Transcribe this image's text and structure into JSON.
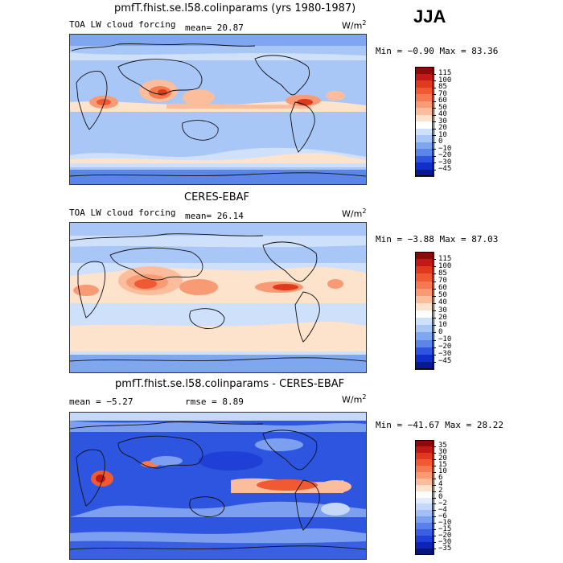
{
  "season": "JJA",
  "panels": [
    {
      "title": "pmfT.fhist.se.l58.colinparams (yrs 1980-1987)",
      "left_label": "TOA LW cloud forcing",
      "stat1": "mean=  20.87",
      "stat2": "",
      "units_base": "W/m",
      "units_exp": "2",
      "minmax": "Min =  −0.90 Max =  83.36",
      "colorbar": {
        "labels": [
          "115",
          "100",
          "85",
          "70",
          "60",
          "50",
          "40",
          "30",
          "20",
          "10",
          "0",
          "−10",
          "−20",
          "−30",
          "−45"
        ],
        "colors": [
          "#8c0a0a",
          "#c21818",
          "#e03a1e",
          "#ef5a32",
          "#f57a52",
          "#f89a74",
          "#fbbd9c",
          "#fde2cc",
          "#ffffff",
          "#cfe0fb",
          "#a8c6f6",
          "#7fa7ef",
          "#5b86e8",
          "#2e55df",
          "#0f2fc8",
          "#081a8e"
        ]
      },
      "map": {
        "base": "#a8c6f6"
      }
    },
    {
      "title": "CERES-EBAF",
      "left_label": "TOA LW cloud forcing",
      "stat1": "mean=  26.14",
      "stat2": "",
      "units_base": "W/m",
      "units_exp": "2",
      "minmax": "Min =  −3.88 Max =  87.03",
      "colorbar": {
        "labels": [
          "115",
          "100",
          "85",
          "70",
          "60",
          "50",
          "40",
          "30",
          "20",
          "10",
          "0",
          "−10",
          "−20",
          "−30",
          "−45"
        ],
        "colors": [
          "#8c0a0a",
          "#c21818",
          "#e03a1e",
          "#ef5a32",
          "#f57a52",
          "#f89a74",
          "#fbbd9c",
          "#fde2cc",
          "#ffffff",
          "#cfe0fb",
          "#a8c6f6",
          "#7fa7ef",
          "#5b86e8",
          "#2e55df",
          "#0f2fc8",
          "#081a8e"
        ]
      },
      "map": {
        "base": "#cfe0fb"
      }
    },
    {
      "title": "pmfT.fhist.se.l58.colinparams - CERES-EBAF",
      "left_label": "",
      "stat1": "mean =  −5.27",
      "stat2": "rmse =  8.89",
      "units_base": "W/m",
      "units_exp": "2",
      "minmax": "Min = −41.67 Max =  28.22",
      "colorbar": {
        "labels": [
          "35",
          "30",
          "20",
          "15",
          "10",
          "6",
          "4",
          "2",
          "0",
          "−2",
          "−4",
          "−6",
          "−10",
          "−15",
          "−20",
          "−30",
          "−35"
        ],
        "colors": [
          "#8c0a0a",
          "#c21818",
          "#e03a1e",
          "#ef5a32",
          "#f57a52",
          "#f89a74",
          "#fbbd9c",
          "#fde2cc",
          "#ffffff",
          "#e2ecfd",
          "#c6d8fa",
          "#a3bef5",
          "#7c9ff0",
          "#5b80ea",
          "#3a5fe2",
          "#1f3fd6",
          "#0d24b6",
          "#071679"
        ]
      },
      "map": {
        "base": "#2e55df"
      }
    }
  ]
}
